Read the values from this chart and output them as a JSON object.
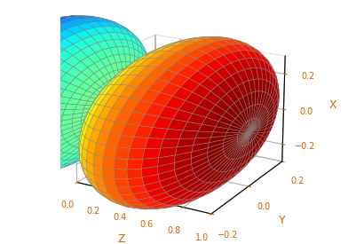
{
  "xlabel": "Z",
  "ylabel": "Y",
  "zlabel": "X",
  "xlim": [
    0,
    1
  ],
  "ylim": [
    -0.2,
    0.2
  ],
  "zlim": [
    -0.3,
    0.3
  ],
  "elev": 20,
  "azim": -60,
  "n_theta": 50,
  "n_phi": 50,
  "grid_color": "#cccccc",
  "label_color": "#cc6600",
  "label_fontsize": 9,
  "tick_fontsize": 7,
  "xticks": [
    0,
    0.2,
    0.4,
    0.6,
    0.8,
    1.0
  ],
  "yticks": [
    -0.2,
    0,
    0.2
  ],
  "zticks": [
    -0.2,
    0,
    0.2
  ],
  "edge_color": "#888888",
  "edge_linewidth": 0.3,
  "back_lobe_scale": 0.08
}
